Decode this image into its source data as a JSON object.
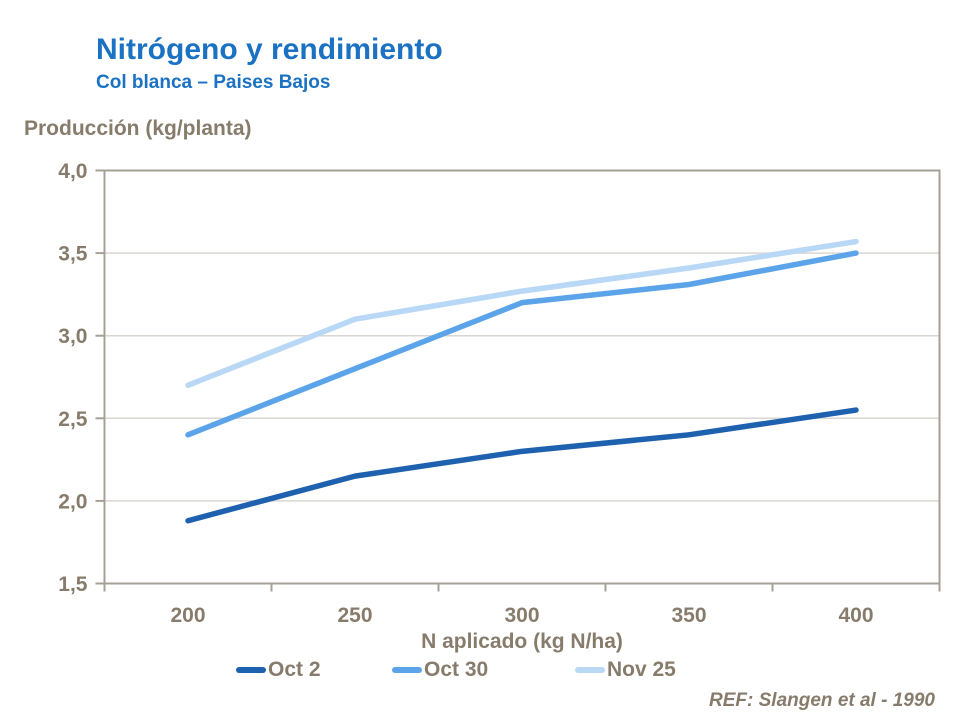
{
  "header": {
    "title": "Nitrógeno y rendimiento",
    "subtitle": "Col blanca – Paises Bajos"
  },
  "ref_note": "REF: Slangen et al - 1990",
  "colors": {
    "title_blue": "#1B72C2",
    "axis_text": "#877C6C",
    "frame": "#A5A096",
    "gridline": "#DAD7D2",
    "series_oct2": "#1E61AE",
    "series_oct30": "#5CA4EA",
    "series_nov25": "#B8D8F6"
  },
  "chart_data": {
    "type": "line",
    "title": "Nitrógeno y rendimiento",
    "subtitle": "Col blanca – Paises Bajos",
    "xlabel": "N aplicado (kg N/ha)",
    "ylabel": "Producción (kg/planta)",
    "categories": [
      "200",
      "250",
      "300",
      "350",
      "400"
    ],
    "x_values": [
      200,
      250,
      300,
      350,
      400
    ],
    "ylim": [
      1.5,
      4.0
    ],
    "yticks": [
      1.5,
      2.0,
      2.5,
      3.0,
      3.5,
      4.0
    ],
    "ytick_labels": [
      "1,5",
      "2,0",
      "2,5",
      "3,0",
      "3,5",
      "4,0"
    ],
    "grid": "horizontal-only",
    "legend_position": "bottom",
    "series": [
      {
        "name": "Oct 2",
        "color": "#1E61AE",
        "values": [
          1.88,
          2.15,
          2.3,
          2.4,
          2.55
        ]
      },
      {
        "name": "Oct 30",
        "color": "#5CA4EA",
        "values": [
          2.4,
          2.8,
          3.2,
          3.31,
          3.5
        ]
      },
      {
        "name": "Nov 25",
        "color": "#B8D8F6",
        "values": [
          2.7,
          3.1,
          3.27,
          3.41,
          3.57
        ]
      }
    ]
  }
}
